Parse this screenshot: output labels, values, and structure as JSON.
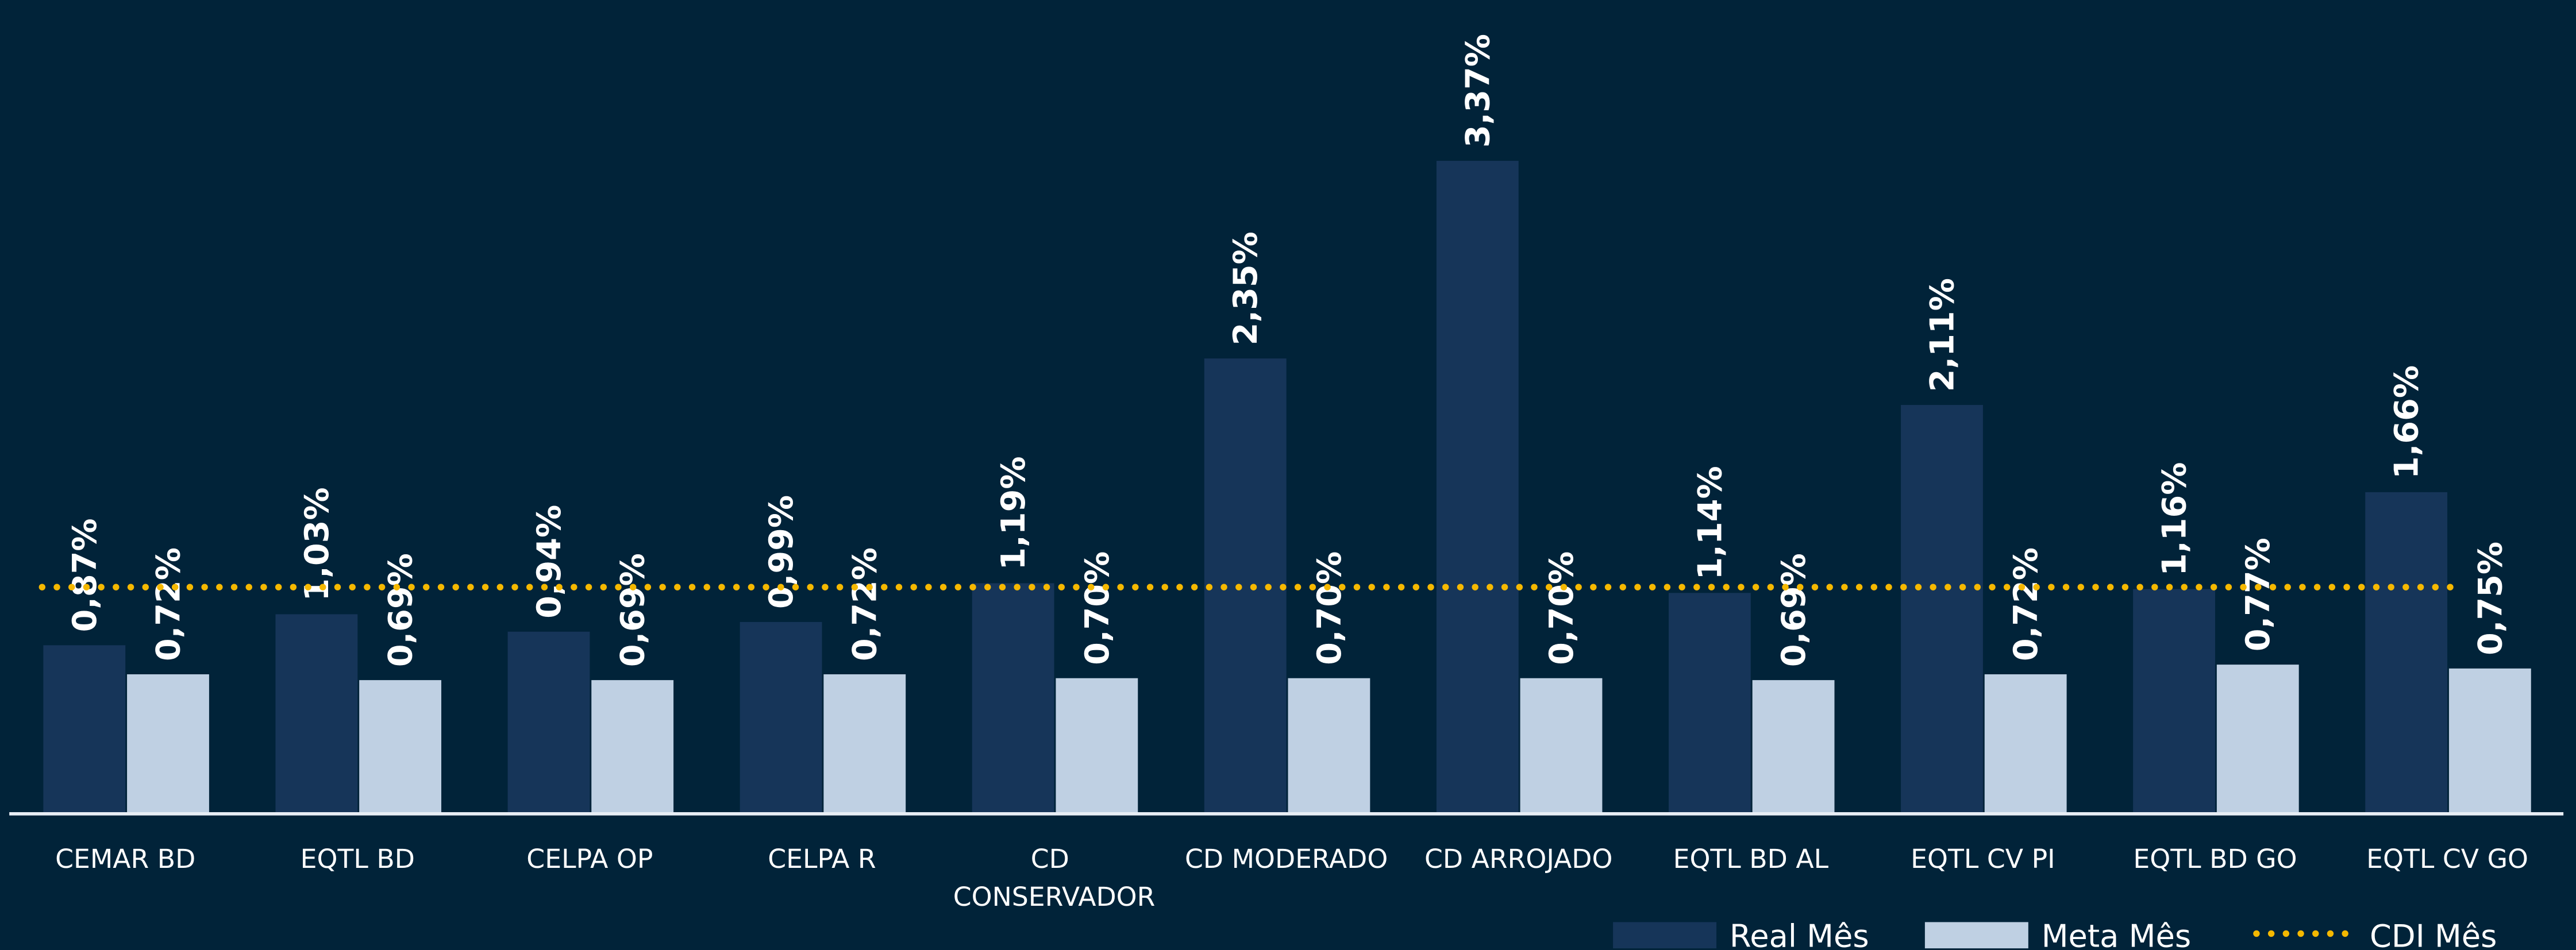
{
  "chart_data": {
    "type": "bar",
    "categories": [
      "CEMAR BD",
      "EQTL BD",
      "CELPA OP",
      "CELPA R",
      "CD CONSERVADOR",
      "CD MODERADO",
      "CD ARROJADO",
      "EQTL BD AL",
      "EQTL CV PI",
      "EQTL BD GO",
      "EQTL CV GO"
    ],
    "series": [
      {
        "name": "Real Mês",
        "color": "#163559",
        "type": "bar",
        "values": [
          0.87,
          1.03,
          0.94,
          0.99,
          1.19,
          2.35,
          3.37,
          1.14,
          2.11,
          1.16,
          1.66
        ],
        "value_labels": [
          "0,87%",
          "1,03%",
          "0,94%",
          "0,99%",
          "1,19%",
          "2,35%",
          "3,37%",
          "1,14%",
          "2,11%",
          "1,16%",
          "1,66%"
        ]
      },
      {
        "name": "Meta Mês",
        "color": "#bfd0e3",
        "type": "bar",
        "values": [
          0.72,
          0.69,
          0.69,
          0.72,
          0.7,
          0.7,
          0.7,
          0.69,
          0.72,
          0.77,
          0.75
        ],
        "value_labels": [
          "0,72%",
          "0,69%",
          "0,69%",
          "0,72%",
          "0,70%",
          "0,70%",
          "0,70%",
          "0,69%",
          "0,72%",
          "0,77%",
          "0,75%"
        ]
      },
      {
        "name": "CDI Mês",
        "color": "#f5b800",
        "type": "line",
        "values": [
          1.17,
          1.17,
          1.17,
          1.17,
          1.17,
          1.17,
          1.17,
          1.17,
          1.17,
          1.17,
          1.17
        ]
      }
    ],
    "ylim": [
      0,
      4.2
    ],
    "legend": "bottom-right"
  }
}
